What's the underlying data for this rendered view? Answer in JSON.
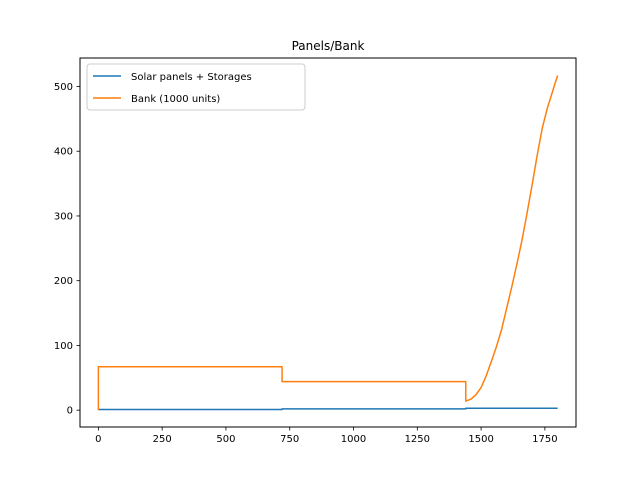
{
  "chart_data": {
    "type": "line",
    "title": "Panels/Bank",
    "xlabel": "",
    "ylabel": "",
    "xlim": [
      -72,
      1872
    ],
    "ylim": [
      -26,
      544
    ],
    "xticks": [
      0,
      250,
      500,
      750,
      1000,
      1250,
      1500,
      1750
    ],
    "yticks": [
      0,
      100,
      200,
      300,
      400,
      500
    ],
    "grid": false,
    "legend_position": "top-left",
    "series": [
      {
        "name": "Solar panels + Storages",
        "color": "#1f77b4",
        "x": [
          0,
          720,
          720,
          1440,
          1440,
          1800
        ],
        "y": [
          1,
          1,
          2,
          2,
          3,
          3
        ]
      },
      {
        "name": "Bank (1000 units)",
        "color": "#ff7f0e",
        "x": [
          0,
          0,
          720,
          720,
          1440,
          1440,
          1460,
          1480,
          1500,
          1520,
          1540,
          1560,
          1580,
          1600,
          1620,
          1640,
          1660,
          1680,
          1700,
          1720,
          1740,
          1760,
          1780,
          1790,
          1800
        ],
        "y": [
          0,
          67,
          67,
          44,
          44,
          14,
          17,
          24,
          35,
          53,
          75,
          98,
          124,
          157,
          190,
          225,
          262,
          304,
          348,
          394,
          436,
          467,
          492,
          505,
          517
        ]
      }
    ]
  }
}
